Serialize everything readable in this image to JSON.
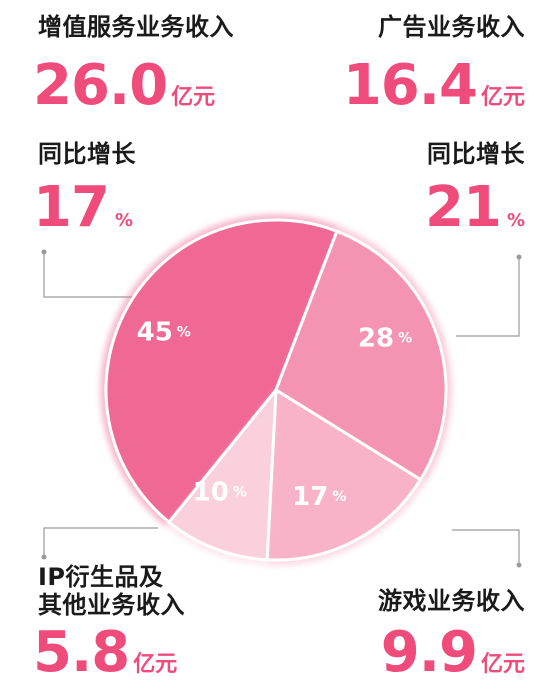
{
  "segments": [
    {
      "label": "增值服务业务收入",
      "label_lines": [
        "增值服务业务收入"
      ],
      "value": "26.0",
      "unit": "亿元",
      "growth_label": "同比增长",
      "growth": "17",
      "growth_unit": "%",
      "share": 45,
      "share_text": "45",
      "color": "#f06894"
    },
    {
      "label": "广告业务收入",
      "label_lines": [
        "广告业务收入"
      ],
      "value": "16.4",
      "unit": "亿元",
      "growth_label": "同比增长",
      "growth": "21",
      "growth_unit": "%",
      "share": 28,
      "share_text": "28",
      "color": "#f494b2"
    },
    {
      "label": "游戏业务收入",
      "label_lines": [
        "游戏业务收入"
      ],
      "value": "9.9",
      "unit": "亿元",
      "share": 17,
      "share_text": "17",
      "color": "#f8b3c8"
    },
    {
      "label": "IP衍生品及其他业务收入",
      "label_lines": [
        "IP衍生品及",
        "其他业务收入"
      ],
      "value": "5.8",
      "unit": "亿元",
      "share": 10,
      "share_text": "10",
      "color": "#fad0dc"
    }
  ],
  "percent_sign": "%",
  "chart_data": {
    "type": "pie",
    "categories": [
      "增值服务业务收入",
      "广告业务收入",
      "游戏业务收入",
      "IP衍生品及其他业务收入"
    ],
    "values": [
      45,
      28,
      17,
      10
    ],
    "revenue": [
      26.0,
      16.4,
      9.9,
      5.8
    ],
    "revenue_unit": "亿元",
    "growth": [
      17,
      21,
      null,
      null
    ],
    "growth_unit": "%",
    "colors": [
      "#f06894",
      "#f494b2",
      "#f8b3c8",
      "#fad0dc"
    ]
  }
}
